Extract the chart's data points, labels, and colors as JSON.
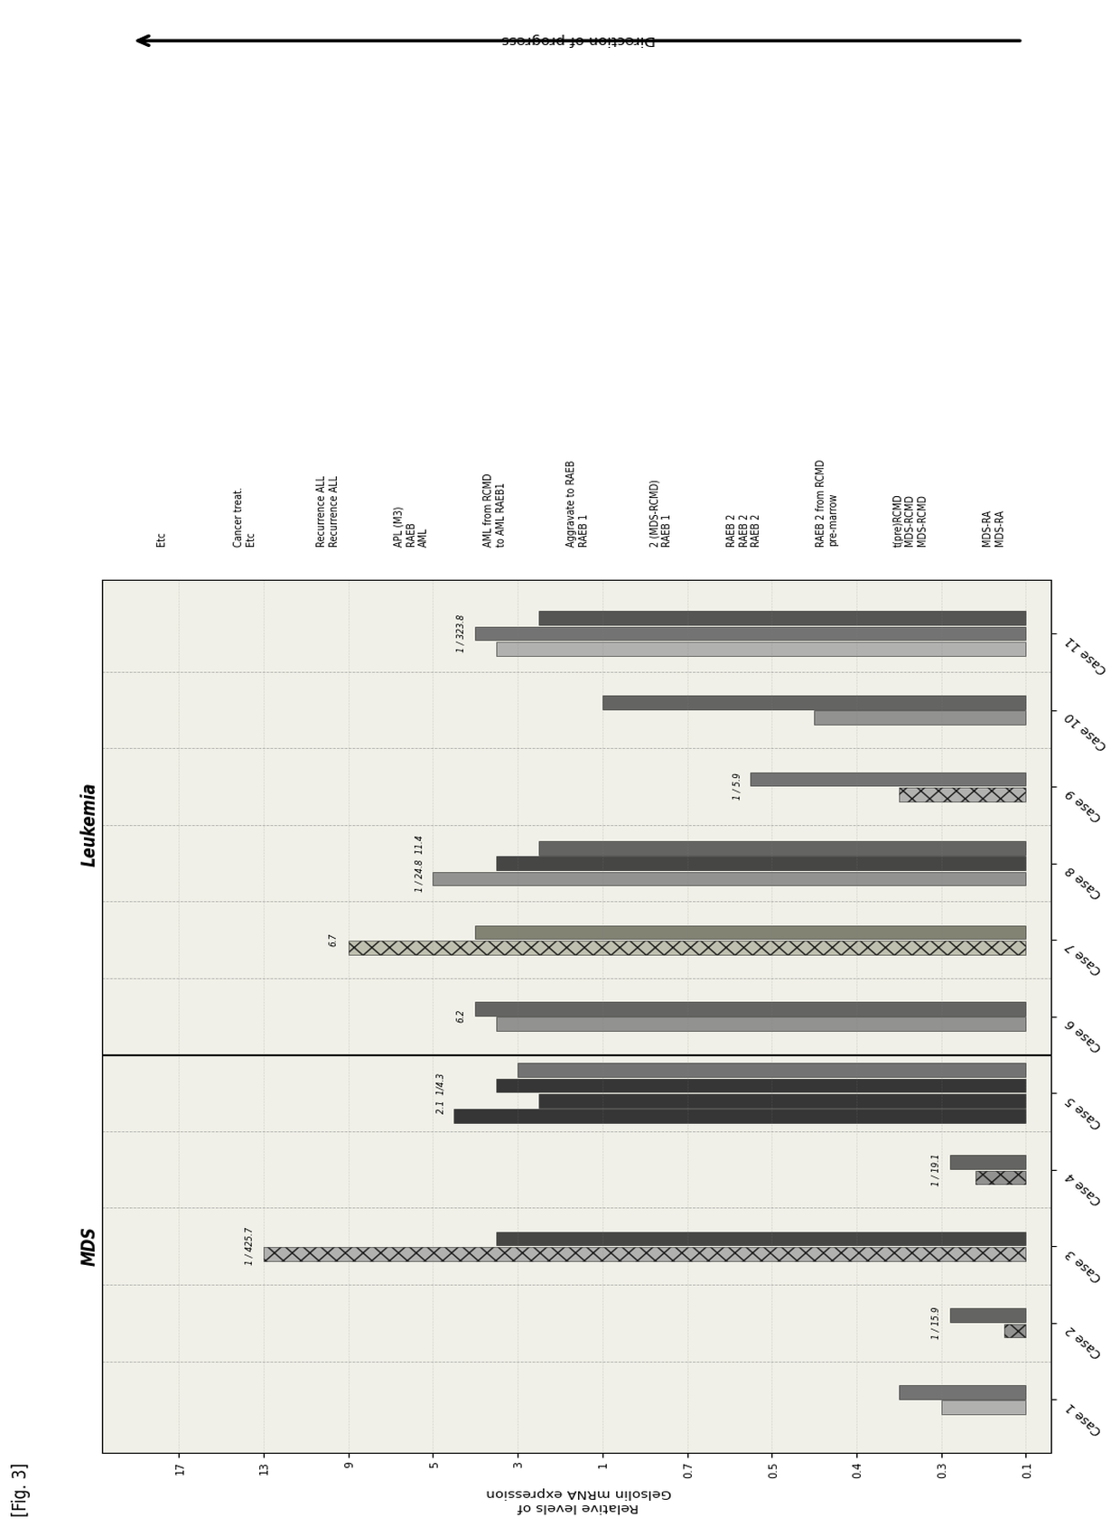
{
  "title": "[Fig. 3]",
  "ylabel": "Relative levels of\nGelsolin mRNA expression",
  "scale_vals": [
    0.1,
    0.3,
    0.4,
    0.5,
    0.7,
    1,
    3,
    5,
    9,
    13,
    17
  ],
  "cases": [
    "Case 1",
    "Case 2",
    "Case 3",
    "Case 4",
    "Case 5",
    "Case 6",
    "Case 7",
    "Case 8",
    "Case 9",
    "Case 10",
    "Case 11"
  ],
  "mds_label": "MDS",
  "leukemia_label": "Leukemia",
  "bar_data": [
    [
      [
        0.3,
        "#aaaaaa",
        ""
      ],
      [
        0.35,
        "#666666",
        ""
      ]
    ],
    [
      [
        0.15,
        "#888888",
        "xx"
      ],
      [
        0.28,
        "#555555",
        ""
      ]
    ],
    [
      [
        13.0,
        "#aaaaaa",
        "xx"
      ],
      [
        3.5,
        "#333333",
        ""
      ]
    ],
    [
      [
        0.22,
        "#888888",
        "xx"
      ],
      [
        0.28,
        "#555555",
        ""
      ]
    ],
    [
      [
        4.5,
        "#222222",
        ""
      ],
      [
        2.5,
        "#222222",
        ""
      ],
      [
        3.5,
        "#222222",
        ""
      ],
      [
        3.0,
        "#666666",
        ""
      ]
    ],
    [
      [
        3.5,
        "#888888",
        ""
      ],
      [
        4.0,
        "#555555",
        ""
      ]
    ],
    [
      [
        9.0,
        "#bbbbaa",
        "xx"
      ],
      [
        4.0,
        "#777766",
        ""
      ]
    ],
    [
      [
        5.0,
        "#888888",
        ""
      ],
      [
        3.5,
        "#333333",
        ""
      ],
      [
        2.5,
        "#555555",
        ""
      ]
    ],
    [
      [
        0.35,
        "#aaaaaa",
        "xx"
      ],
      [
        0.55,
        "#666666",
        ""
      ]
    ],
    [
      [
        0.45,
        "#888888",
        ""
      ],
      [
        1.0,
        "#555555",
        ""
      ]
    ],
    [
      [
        3.5,
        "#aaaaaa",
        ""
      ],
      [
        4.0,
        "#666666",
        ""
      ],
      [
        2.5,
        "#444444",
        ""
      ]
    ]
  ],
  "annotations": [
    [],
    [
      "1 / 15.9"
    ],
    [
      "1 / 425.7"
    ],
    [
      "1 / 19.1"
    ],
    [
      "2.1",
      "1/4.3"
    ],
    [
      "6.2"
    ],
    [
      "6.7"
    ],
    [
      "1 / 24.8",
      "11.4"
    ],
    [
      "1 / 5.9"
    ],
    [],
    [
      "1 / 323.8"
    ]
  ],
  "right_labels": [
    "MDS-RA\nMDS-RA",
    "t(pre)RCMD\nMDS-RCMD\nMDS-RCMD",
    "RAEB 2 from RCMD\npre-marrow",
    "RAEB 2\nRAEB 2\nRAEB 2",
    "2 (MDS-RCMD)\nRAEB 1",
    "Aggravate to RAEB\nRAEB 1",
    "AML from RCMD\nto AML RAEB1",
    "APL (M3)\nRAEB\nAML",
    "Recurrence ALL\nRecurrence ALL",
    "Cancer treat.\nEtc",
    "Etc"
  ],
  "direction_label": "Direction of progress",
  "bg_color": "#f0f0e8",
  "fig_bg": "#ffffff"
}
